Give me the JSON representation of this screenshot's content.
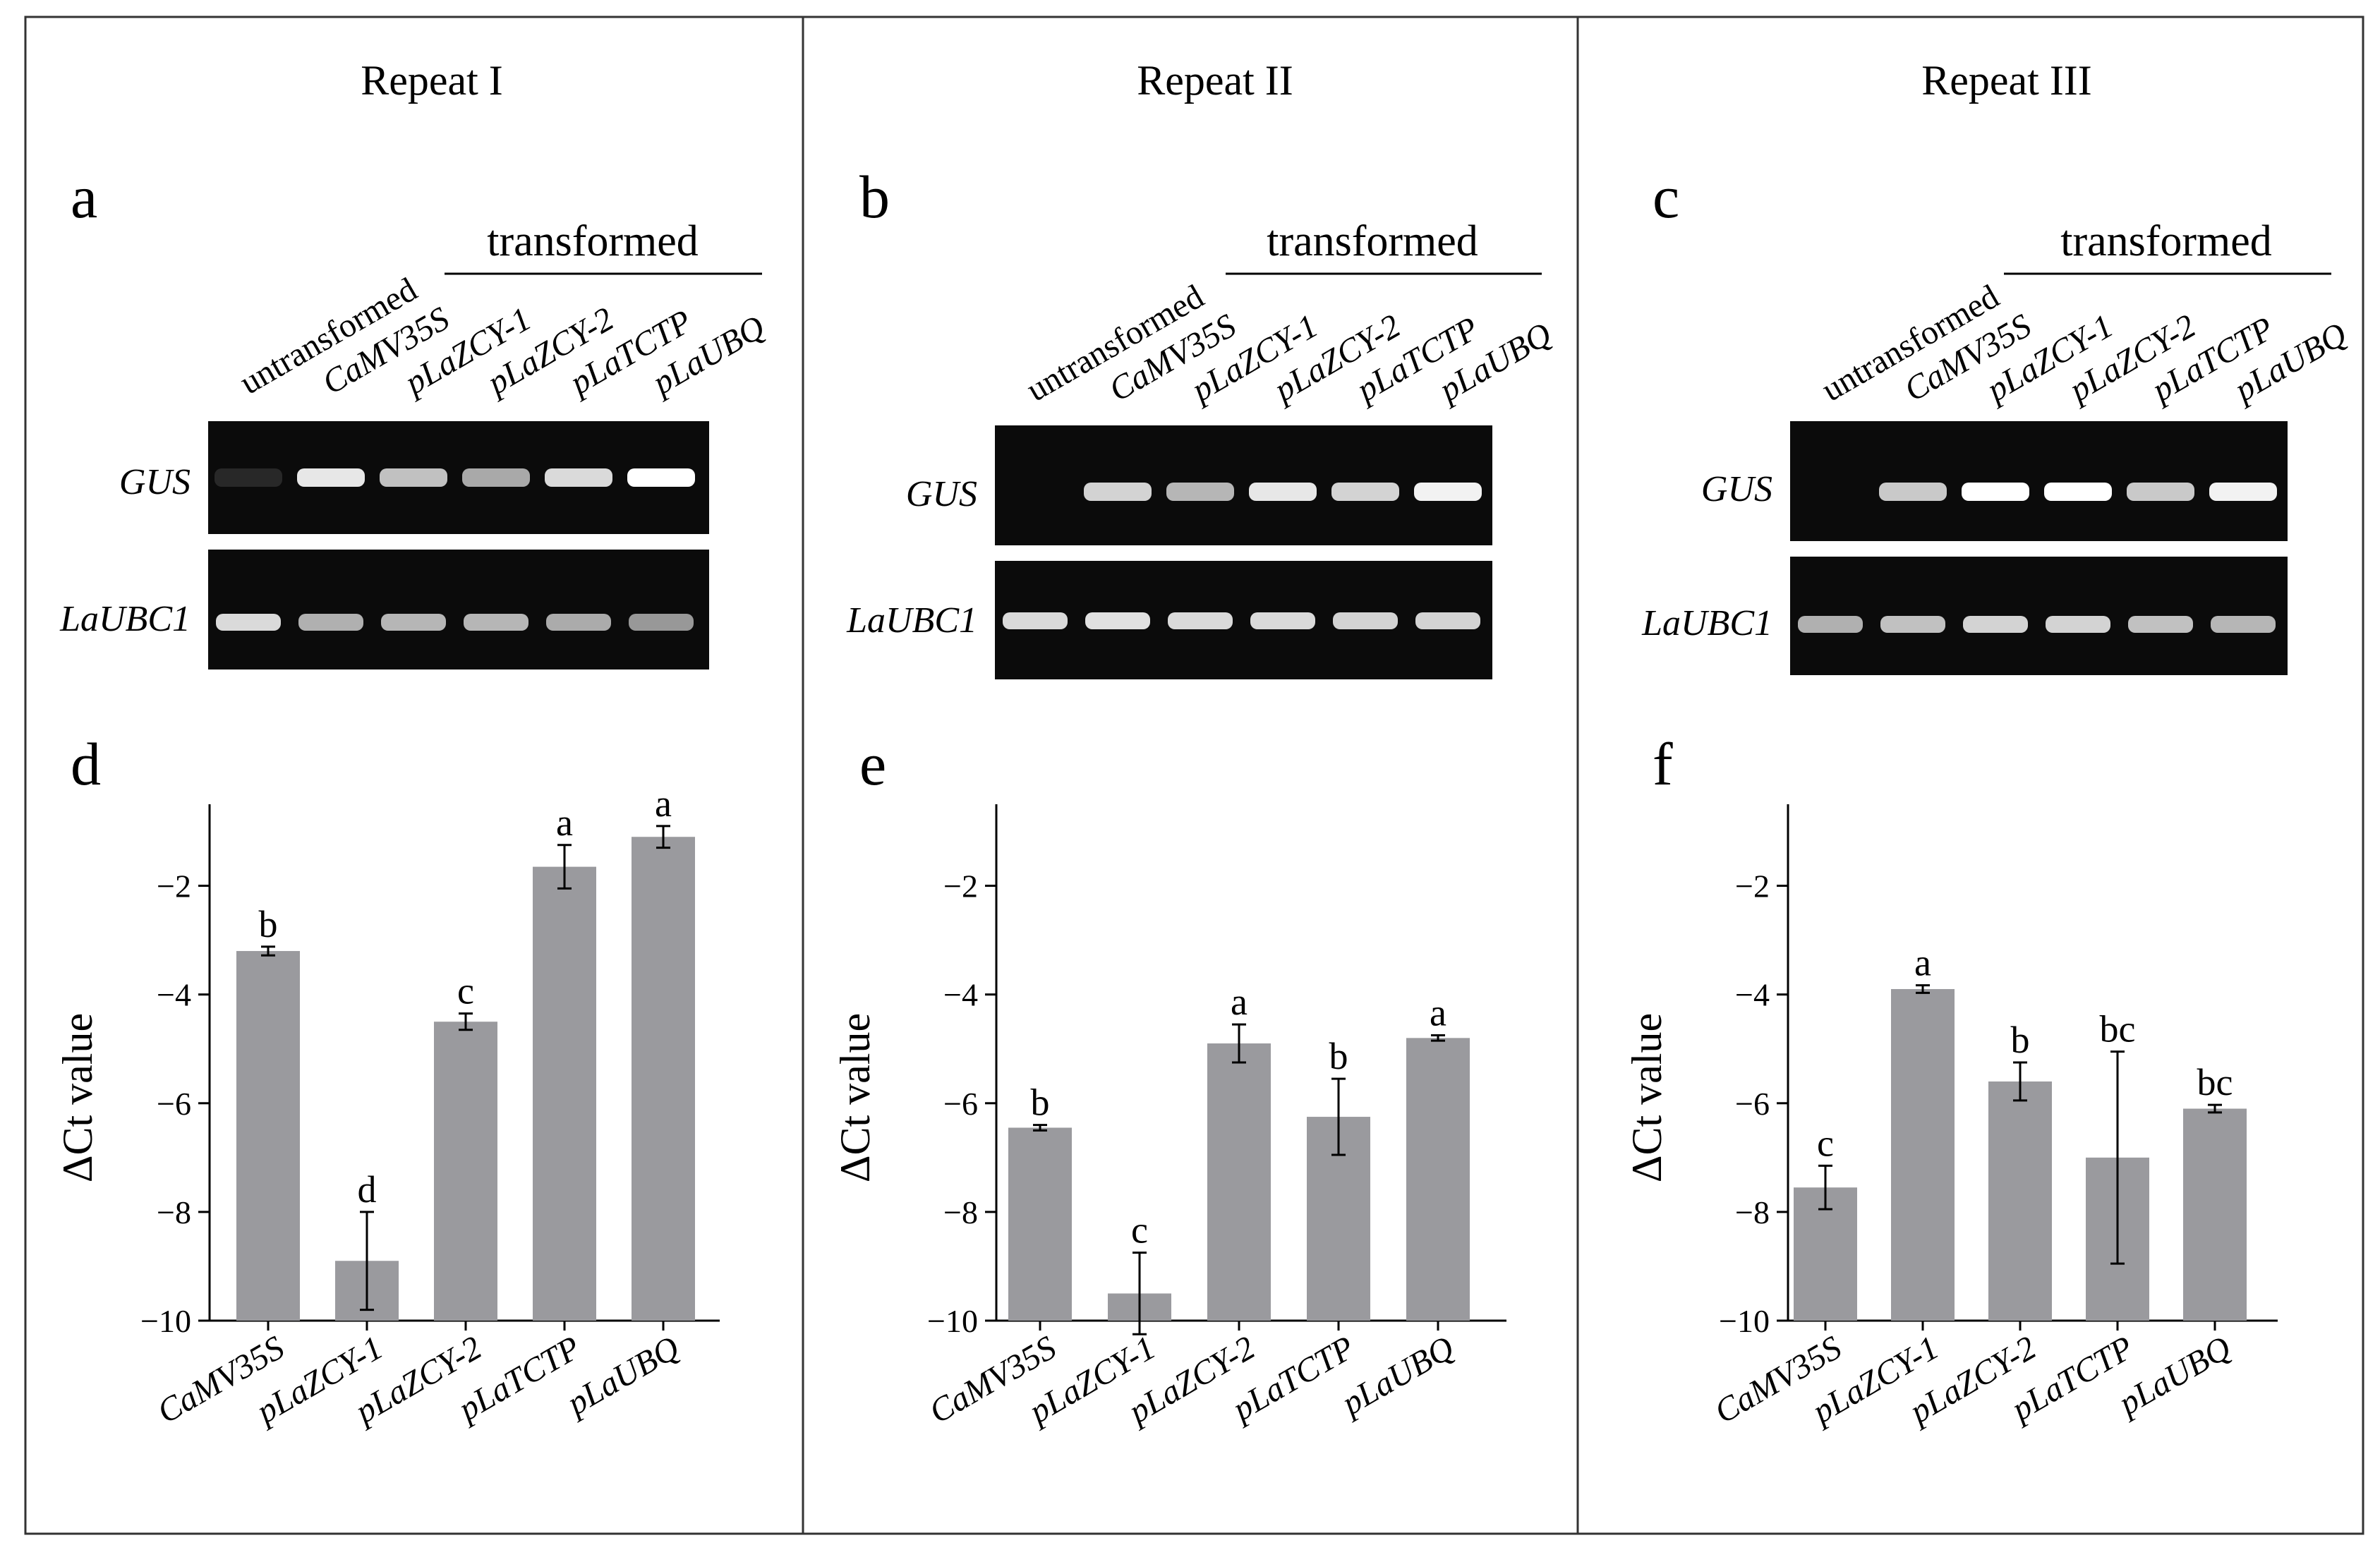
{
  "columns": [
    {
      "title": "Repeat I",
      "gel_label": "a",
      "chart_label": "d"
    },
    {
      "title": "Repeat II",
      "gel_label": "b",
      "chart_label": "e"
    },
    {
      "title": "Repeat III",
      "gel_label": "c",
      "chart_label": "f"
    }
  ],
  "gel": {
    "group_label": "transformed",
    "lanes": [
      "untransformed",
      "CaMV35S",
      "pLaZCY-1",
      "pLaZCY-2",
      "pLaTCTP",
      "pLaUBQ"
    ],
    "rows": [
      "GUS",
      "LaUBC1"
    ],
    "colors": {
      "gel_background": "#0b0b0b",
      "band": "#ffffff"
    },
    "gus_band_intensity": [
      [
        0.12,
        0.9,
        0.75,
        0.65,
        0.85,
        1.0
      ],
      [
        0.0,
        0.82,
        0.7,
        0.9,
        0.82,
        0.95
      ],
      [
        0.0,
        0.78,
        1.0,
        1.0,
        0.78,
        0.95
      ]
    ],
    "ubc_band_intensity": [
      [
        0.85,
        0.68,
        0.7,
        0.7,
        0.66,
        0.58
      ],
      [
        0.85,
        0.88,
        0.85,
        0.85,
        0.82,
        0.82
      ],
      [
        0.68,
        0.75,
        0.82,
        0.82,
        0.75,
        0.7
      ]
    ]
  },
  "chart_data": [
    {
      "type": "bar",
      "panel": "d",
      "categories": [
        "CaMV35S",
        "pLaZCY-1",
        "pLaZCY-2",
        "pLaTCTP",
        "pLaUBQ"
      ],
      "values": [
        -3.2,
        -8.9,
        -4.5,
        -1.65,
        -1.1
      ],
      "errors": [
        0.08,
        0.9,
        0.15,
        0.4,
        0.2
      ],
      "significance": [
        "b",
        "d",
        "c",
        "a",
        "a"
      ],
      "ylabel": "ΔCt value",
      "xlabel": "",
      "ylim": [
        -10,
        -0.5
      ],
      "yticks": [
        -2,
        -4,
        -6,
        -8,
        -10
      ],
      "ytick_labels": [
        "−2",
        "−4",
        "−6",
        "−8",
        "−10"
      ],
      "bar_color": "#9a9a9e"
    },
    {
      "type": "bar",
      "panel": "e",
      "categories": [
        "CaMV35S",
        "pLaZCY-1",
        "pLaZCY-2",
        "pLaTCTP",
        "pLaUBQ"
      ],
      "values": [
        -6.45,
        -9.5,
        -4.9,
        -6.25,
        -4.8
      ],
      "errors": [
        0.05,
        0.75,
        0.35,
        0.7,
        0.05
      ],
      "significance": [
        "b",
        "c",
        "a",
        "b",
        "a"
      ],
      "ylabel": "ΔCt value",
      "xlabel": "",
      "ylim": [
        -10,
        -0.5
      ],
      "yticks": [
        -2,
        -4,
        -6,
        -8,
        -10
      ],
      "ytick_labels": [
        "−2",
        "−4",
        "−6",
        "−8",
        "−10"
      ],
      "bar_color": "#9a9a9e"
    },
    {
      "type": "bar",
      "panel": "f",
      "categories": [
        "CaMV35S",
        "pLaZCY-1",
        "pLaZCY-2",
        "pLaTCTP",
        "pLaUBQ"
      ],
      "values": [
        -7.55,
        -3.9,
        -5.6,
        -7.0,
        -6.1
      ],
      "errors": [
        0.4,
        0.07,
        0.35,
        1.95,
        0.07
      ],
      "significance": [
        "c",
        "a",
        "b",
        "bc",
        "bc"
      ],
      "ylabel": "ΔCt value",
      "xlabel": "",
      "ylim": [
        -10,
        -0.5
      ],
      "yticks": [
        -2,
        -4,
        -6,
        -8,
        -10
      ],
      "ytick_labels": [
        "−2",
        "−4",
        "−6",
        "−8",
        "−10"
      ],
      "bar_color": "#9a9a9e"
    }
  ]
}
